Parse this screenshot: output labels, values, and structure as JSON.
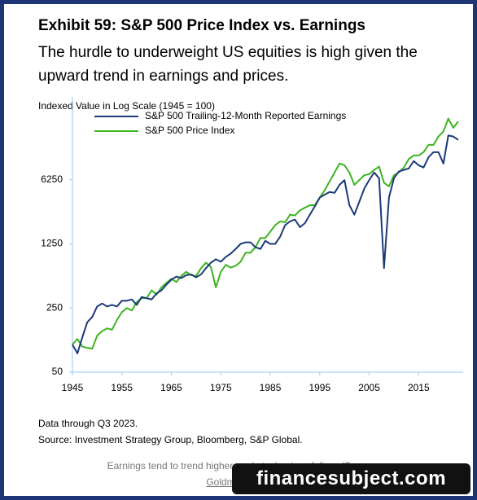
{
  "chart_data": {
    "type": "line",
    "title": "Exhibit 59: S&P 500 Price Index vs. Earnings",
    "subtitle": "The hurdle to underweight US equities is high given the upward trend in earnings and prices.",
    "y_label": "Indexed Value in Log Scale (1945 = 100)",
    "x": [
      1945,
      1946,
      1947,
      1948,
      1949,
      1950,
      1951,
      1952,
      1953,
      1954,
      1955,
      1956,
      1957,
      1958,
      1959,
      1960,
      1961,
      1962,
      1963,
      1964,
      1965,
      1966,
      1967,
      1968,
      1969,
      1970,
      1971,
      1972,
      1973,
      1974,
      1975,
      1976,
      1977,
      1978,
      1979,
      1980,
      1981,
      1982,
      1983,
      1984,
      1985,
      1986,
      1987,
      1988,
      1989,
      1990,
      1991,
      1992,
      1993,
      1994,
      1995,
      1996,
      1997,
      1998,
      1999,
      2000,
      2001,
      2002,
      2003,
      2004,
      2005,
      2006,
      2007,
      2008,
      2009,
      2010,
      2011,
      2012,
      2013,
      2014,
      2015,
      2016,
      2017,
      2018,
      2019,
      2020,
      2021,
      2022,
      2023
    ],
    "series": [
      {
        "name": "S&P 500 Trailing-12-Month Reported Earnings",
        "color": "#1b3a7a",
        "values": [
          100,
          80,
          120,
          175,
          200,
          260,
          280,
          260,
          270,
          260,
          300,
          300,
          310,
          270,
          330,
          320,
          310,
          360,
          390,
          450,
          510,
          550,
          530,
          570,
          580,
          540,
          580,
          680,
          780,
          850,
          800,
          900,
          980,
          1100,
          1250,
          1300,
          1300,
          1150,
          1100,
          1350,
          1250,
          1250,
          1500,
          2000,
          2200,
          2300,
          1900,
          2100,
          2600,
          3200,
          4000,
          4300,
          4600,
          4500,
          5500,
          6200,
          3300,
          2600,
          3600,
          5000,
          6200,
          7500,
          6500,
          680,
          4000,
          6500,
          7700,
          8000,
          8300,
          10000,
          9000,
          8500,
          11000,
          12500,
          12500,
          9400,
          19000,
          18500,
          17000
        ]
      },
      {
        "name": "S&P 500 Price Index",
        "color": "#3cb521",
        "values": [
          100,
          115,
          95,
          92,
          90,
          125,
          140,
          150,
          145,
          185,
          225,
          250,
          235,
          290,
          320,
          320,
          390,
          350,
          420,
          470,
          520,
          480,
          560,
          620,
          570,
          560,
          680,
          780,
          700,
          420,
          620,
          740,
          690,
          720,
          800,
          1000,
          1000,
          1150,
          1450,
          1450,
          1700,
          2000,
          2200,
          2150,
          2600,
          2550,
          2900,
          3100,
          3300,
          3300,
          4000,
          4800,
          6000,
          7500,
          9400,
          9000,
          7500,
          5500,
          6200,
          7000,
          7200,
          8000,
          8700,
          5800,
          5300,
          7000,
          7500,
          8500,
          10500,
          11500,
          11500,
          12500,
          15000,
          15000,
          18500,
          21000,
          29000,
          23000,
          27000
        ]
      }
    ],
    "xlim": [
      1945,
      2024
    ],
    "xticks": [
      1945,
      1955,
      1965,
      1975,
      1985,
      1995,
      2005,
      2015
    ],
    "ylim": [
      50,
      50000
    ],
    "yticks": [
      50,
      250,
      1250,
      6250
    ],
    "log_scale": true,
    "legend": "top-left",
    "notes": [
      "Data through Q3 2023.",
      "Source: Investment Strategy Group, Bloomberg, S&P Global."
    ]
  },
  "caption": {
    "text": "Earnings tend to trend higher, and stock prices follow. (Source:",
    "link": "Goldman Sachs)"
  },
  "watermark": "financesubject.com"
}
